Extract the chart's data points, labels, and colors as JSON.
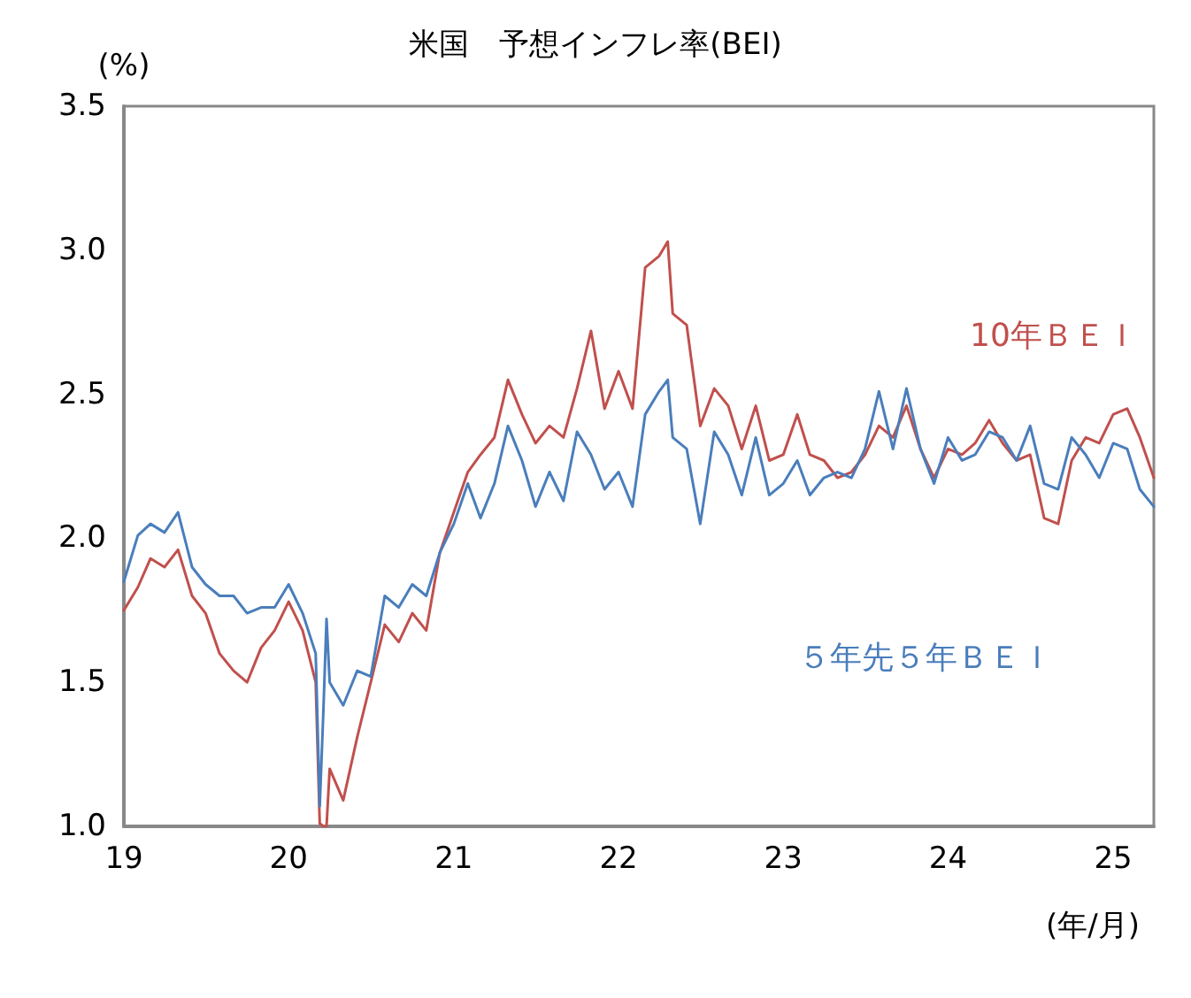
{
  "chart_data": {
    "type": "line",
    "title": "米国　予想インフレ率(BEI)",
    "ylabel": "(%)",
    "xlabel": "(年/月)",
    "x": [
      "2019-01",
      "2019-02",
      "2019-03",
      "2019-04",
      "2019-05",
      "2019-06",
      "2019-07",
      "2019-08",
      "2019-09",
      "2019-10",
      "2019-11",
      "2019-12",
      "2020-01",
      "2020-02",
      "2020-03",
      "2020-03-10",
      "2020-03-18",
      "2020-03-25",
      "2020-04",
      "2020-05",
      "2020-06",
      "2020-07",
      "2020-08",
      "2020-09",
      "2020-10",
      "2020-11",
      "2020-12",
      "2021-01",
      "2021-02",
      "2021-03",
      "2021-04",
      "2021-05",
      "2021-06",
      "2021-07",
      "2021-08",
      "2021-09",
      "2021-10",
      "2021-11",
      "2021-12",
      "2022-01",
      "2022-02",
      "2022-03",
      "2022-04",
      "2022-04-20",
      "2022-05",
      "2022-06",
      "2022-07",
      "2022-08",
      "2022-09",
      "2022-10",
      "2022-11",
      "2022-12",
      "2023-01",
      "2023-02",
      "2023-03",
      "2023-04",
      "2023-05",
      "2023-06",
      "2023-07",
      "2023-08",
      "2023-09",
      "2023-10",
      "2023-11",
      "2023-12",
      "2024-01",
      "2024-02",
      "2024-03",
      "2024-04",
      "2024-05",
      "2024-06",
      "2024-07",
      "2024-08",
      "2024-09",
      "2024-10",
      "2024-11",
      "2024-12",
      "2025-01",
      "2025-02",
      "2025-03",
      "2025-04"
    ],
    "series": [
      {
        "name": "10年ＢＥＩ",
        "color": "#c0504d",
        "values": [
          1.75,
          1.83,
          1.93,
          1.9,
          1.96,
          1.8,
          1.74,
          1.6,
          1.54,
          1.5,
          1.62,
          1.68,
          1.78,
          1.68,
          1.5,
          1.01,
          1.0,
          1.0,
          1.2,
          1.09,
          1.31,
          1.5,
          1.7,
          1.64,
          1.74,
          1.68,
          1.95,
          2.09,
          2.23,
          2.29,
          2.35,
          2.55,
          2.43,
          2.33,
          2.39,
          2.35,
          2.52,
          2.72,
          2.45,
          2.58,
          2.45,
          2.94,
          2.98,
          3.03,
          2.78,
          2.74,
          2.39,
          2.52,
          2.46,
          2.31,
          2.46,
          2.27,
          2.29,
          2.43,
          2.29,
          2.27,
          2.21,
          2.23,
          2.29,
          2.39,
          2.35,
          2.46,
          2.31,
          2.21,
          2.31,
          2.29,
          2.33,
          2.41,
          2.33,
          2.27,
          2.29,
          2.07,
          2.05,
          2.27,
          2.35,
          2.33,
          2.43,
          2.45,
          2.35,
          2.21
        ]
      },
      {
        "name": "５年先５年ＢＥＩ",
        "color": "#4a7ebb",
        "values": [
          1.85,
          2.01,
          2.05,
          2.02,
          2.09,
          1.9,
          1.84,
          1.8,
          1.8,
          1.74,
          1.76,
          1.76,
          1.84,
          1.74,
          1.6,
          1.07,
          1.4,
          1.72,
          1.5,
          1.42,
          1.54,
          1.52,
          1.8,
          1.76,
          1.84,
          1.8,
          1.95,
          2.05,
          2.19,
          2.07,
          2.19,
          2.39,
          2.27,
          2.11,
          2.23,
          2.13,
          2.37,
          2.29,
          2.17,
          2.23,
          2.11,
          2.43,
          2.51,
          2.55,
          2.35,
          2.31,
          2.05,
          2.37,
          2.29,
          2.15,
          2.35,
          2.15,
          2.19,
          2.27,
          2.15,
          2.21,
          2.23,
          2.21,
          2.31,
          2.51,
          2.31,
          2.52,
          2.31,
          2.19,
          2.35,
          2.27,
          2.29,
          2.37,
          2.35,
          2.27,
          2.39,
          2.19,
          2.17,
          2.35,
          2.29,
          2.21,
          2.33,
          2.31,
          2.17,
          2.11
        ]
      }
    ],
    "xlim": [
      "2019-01",
      "2025-04"
    ],
    "xticks": [
      {
        "value": "2019-01",
        "label": "19"
      },
      {
        "value": "2020-01",
        "label": "20"
      },
      {
        "value": "2021-01",
        "label": "21"
      },
      {
        "value": "2022-01",
        "label": "22"
      },
      {
        "value": "2023-01",
        "label": "23"
      },
      {
        "value": "2024-01",
        "label": "24"
      },
      {
        "value": "2025-01",
        "label": "25"
      }
    ],
    "ylim": [
      1.0,
      3.5
    ],
    "yticks": [
      {
        "value": 1.0,
        "label": "1.0"
      },
      {
        "value": 1.5,
        "label": "1.5"
      },
      {
        "value": 2.0,
        "label": "2.0"
      },
      {
        "value": 2.5,
        "label": "2.5"
      },
      {
        "value": 3.0,
        "label": "3.0"
      },
      {
        "value": 3.5,
        "label": "3.5"
      }
    ],
    "grid": false,
    "legend": false,
    "marker": "none",
    "line_style": "solid"
  }
}
